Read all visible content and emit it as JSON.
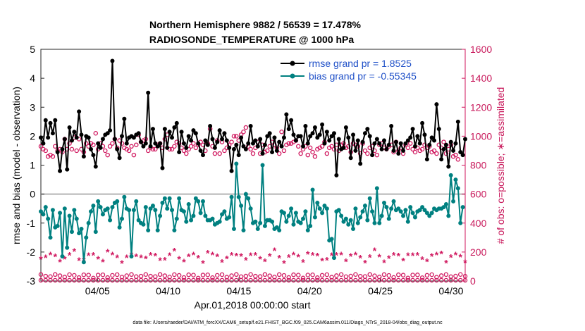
{
  "chart_data": {
    "type": "line",
    "title": "Northern Hemisphere 9882 / 56539 = 17.478%",
    "subtitle": "RADIOSONDE_TEMPERATURE @ 1000 hPa",
    "xlabel": "Apr.01,2018 00:00:00 start",
    "ylabel_left": "rmse and bias (model - observation)",
    "ylabel_right": "# of obs: o=possible; ∗=assimilated",
    "xlim": [
      1.0,
      31.0
    ],
    "ylim_left": [
      -3,
      5
    ],
    "ylim_right": [
      0,
      1600
    ],
    "x_ticks": [
      5,
      10,
      15,
      20,
      25,
      30
    ],
    "x_tick_labels": [
      "04/05",
      "04/10",
      "04/15",
      "04/20",
      "04/25",
      "04/30"
    ],
    "y_ticks_left": [
      "-3",
      "-2",
      "-1",
      "0",
      "1",
      "2",
      "3",
      "4",
      "5"
    ],
    "y_ticks_right": [
      "0",
      "200",
      "400",
      "600",
      "800",
      "1000",
      "1200",
      "1400",
      "1600"
    ],
    "legend": [
      "rmse grand pr = 1.8525",
      "bias grand pr = -0.55345"
    ],
    "footnote": "data file: /Users/raeder/DAI/ATM_forcXX/CAM6_setup/f.e21.FHIST_BGC.f09_025.CAM6assim.011/Diags_NTrS_2018-04/obs_diag_output.nc",
    "colors": {
      "rmse": "#000000",
      "bias": "#008080",
      "obs": "#d0185f",
      "zero_line": "#b4b4b4",
      "legend_text": "#1f50c8"
    },
    "series": [
      {
        "name": "rmse",
        "axis": "left",
        "values": [
          1.95,
          1.75,
          2.55,
          1.95,
          2.45,
          2.1,
          2.55,
          1.45,
          0.8,
          1.55,
          1.9,
          0.85,
          2.3,
          1.85,
          2.15,
          1.95,
          2.85,
          2.05,
          1.3,
          2.0,
          1.95,
          1.55,
          1.35,
          0.95,
          1.75,
          1.6,
          1.9,
          2.05,
          2.1,
          2.2,
          4.6,
          1.9,
          1.55,
          1.25,
          2.0,
          2.6,
          1.75,
          1.95,
          2.0,
          1.95,
          2.05,
          2.1,
          1.8,
          1.65,
          1.75,
          3.5,
          1.65,
          2.25,
          1.75,
          1.65,
          1.75,
          0.9,
          2.25,
          1.6,
          2.15,
          1.95,
          2.3,
          2.45,
          1.45,
          2.15,
          1.75,
          1.6,
          2.0,
          1.85,
          2.2,
          2.1,
          1.75,
          1.5,
          1.35,
          1.85,
          1.7,
          2.35,
          1.9,
          1.6,
          1.8,
          2.2,
          1.9,
          2.1,
          1.85,
          1.6,
          0.8,
          1.55,
          1.7,
          1.35,
          1.95,
          1.65,
          1.55,
          1.75,
          2.35,
          1.75,
          1.85,
          1.65,
          1.9,
          1.4,
          1.7,
          2.0,
          2.1,
          1.45,
          1.95,
          1.5,
          1.8,
          1.65,
          1.95,
          2.75,
          2.25,
          2.55,
          2.05,
          1.85,
          2.0,
          2.0,
          1.65,
          2.35,
          1.75,
          2.0,
          2.1,
          2.3,
          1.95,
          2.05,
          2.4,
          1.75,
          2.15,
          1.85,
          2.0,
          2.1,
          0.65,
          1.9,
          1.55,
          1.6,
          2.3,
          1.95,
          1.25,
          2.05,
          1.5,
          1.85,
          1.05,
          1.8,
          2.1,
          2.25,
          2.0,
          1.35,
          1.75,
          1.9,
          1.75,
          1.55,
          1.85,
          1.55,
          1.7,
          2.35,
          1.5,
          1.8,
          1.4,
          1.75,
          1.5,
          1.75,
          1.85,
          1.95,
          2.25,
          1.65,
          2.0,
          1.75,
          2.45,
          2.05,
          1.2,
          1.7,
          1.95,
          1.85,
          3.1,
          2.25,
          1.2,
          1.55,
          1.7,
          0.95,
          1.8,
          1.5,
          1.75,
          2.5,
          1.45,
          1.35,
          1.9
        ]
      },
      {
        "name": "bias",
        "axis": "left",
        "values": [
          -0.6,
          -0.7,
          -0.45,
          -0.85,
          -1.5,
          -0.55,
          -1.15,
          -1.1,
          -0.65,
          -2.15,
          -0.5,
          -1.85,
          -0.75,
          -1.3,
          -0.55,
          -0.85,
          -1.35,
          -1.2,
          -2.35,
          -1.5,
          -1.0,
          -0.6,
          -0.4,
          -1.3,
          -0.25,
          -0.45,
          -0.7,
          -0.55,
          -0.5,
          -0.9,
          -0.45,
          -0.3,
          -0.25,
          -1.15,
          -0.85,
          -0.1,
          -0.5,
          -0.55,
          -2.15,
          -0.55,
          -0.25,
          -0.9,
          -1.0,
          -1.05,
          -0.45,
          -1.25,
          -0.5,
          -0.4,
          -0.55,
          -1.25,
          -0.75,
          -0.3,
          -0.15,
          -0.5,
          -0.15,
          -0.55,
          -1.25,
          -0.85,
          -0.15,
          -0.55,
          -0.6,
          -0.95,
          -0.35,
          -0.9,
          -0.75,
          -0.15,
          -0.25,
          -0.65,
          -0.25,
          -0.75,
          -0.9,
          -0.9,
          -0.85,
          -1.05,
          -1.0,
          -0.95,
          -0.7,
          -0.6,
          -0.85,
          -0.8,
          -0.1,
          -1.2,
          1.05,
          -0.1,
          -0.4,
          -1.25,
          0.0,
          -0.15,
          -0.5,
          -1.0,
          -0.95,
          -1.2,
          -1.0,
          1.0,
          -1.1,
          -0.9,
          -0.9,
          -0.95,
          -1.2,
          -1.15,
          -1.25,
          -0.6,
          -0.65,
          -0.95,
          -0.75,
          -0.5,
          -1.05,
          -0.65,
          -0.95,
          -1.0,
          -0.85,
          -0.6,
          -1.25,
          -1.1,
          0.15,
          -0.8,
          -0.3,
          -0.5,
          -0.65,
          -0.4,
          -0.5,
          -1.6,
          -1.55,
          -2.2,
          -0.6,
          -0.55,
          -0.75,
          -0.95,
          -0.85,
          -1.05,
          -0.9,
          -1.2,
          -0.5,
          -1.0,
          -0.8,
          -0.6,
          -0.4,
          -0.9,
          -0.15,
          -0.6,
          -1.0,
          0.2,
          -1.0,
          -0.75,
          -0.3,
          -0.45,
          -0.85,
          -0.5,
          -0.25,
          -0.55,
          -0.5,
          -0.6,
          -0.75,
          -0.55,
          -0.95,
          -0.45,
          -0.65,
          -0.8,
          -0.6,
          -0.55,
          -0.45,
          -0.55,
          -0.65,
          -0.75,
          -0.65,
          -0.5,
          -0.55,
          -0.5,
          -0.5,
          -0.45,
          -0.35,
          -0.75,
          0.65,
          -0.25,
          0.5,
          0.2,
          -1.0,
          -0.45
        ]
      },
      {
        "name": "obs_possible",
        "axis": "right",
        "values": [
          930,
          910,
          900,
          860,
          870,
          860,
          930,
          900,
          910,
          890,
          980,
          910,
          950,
          910,
          990,
          900,
          980,
          910,
          890,
          950,
          930,
          950,
          940,
          1020,
          910,
          950,
          930,
          900,
          870,
          930,
          950,
          980,
          920,
          970,
          950,
          920,
          910,
          900,
          930,
          870,
          940,
          1010,
          960,
          970,
          980,
          900,
          920,
          910,
          910,
          940,
          950,
          920,
          980,
          1010,
          910,
          910,
          930,
          960,
          950,
          920,
          900,
          880,
          910,
          930,
          950,
          920,
          940,
          960,
          940,
          900,
          950,
          1050,
          930,
          880,
          970,
          880,
          960,
          900,
          920,
          940,
          960,
          1000,
          1000,
          970,
          1010,
          1030,
          1060,
          930,
          910,
          880,
          920,
          960,
          880,
          940,
          890,
          900,
          930,
          960,
          940,
          920,
          880,
          1030,
          900,
          940,
          950,
          950,
          960,
          970,
          930,
          880,
          910,
          930,
          870,
          920,
          890,
          860,
          910,
          920,
          930,
          960,
          880,
          920,
          930,
          910,
          940,
          900,
          940,
          950,
          920,
          930,
          890,
          950,
          940,
          930,
          880,
          950,
          900,
          880,
          920,
          930,
          900,
          870,
          940,
          950,
          920,
          910,
          930,
          940,
          890,
          960,
          900,
          920,
          880,
          940,
          920,
          950,
          910,
          890,
          920,
          900,
          910,
          940,
          920,
          930,
          890,
          900,
          880,
          940,
          920,
          960,
          880,
          910,
          940,
          860,
          870,
          840
        ]
      }
    ],
    "obs_assimilated_note": "asterisks along bottom (~80-220) and open circles near 0-60 repeat each cycle"
  }
}
